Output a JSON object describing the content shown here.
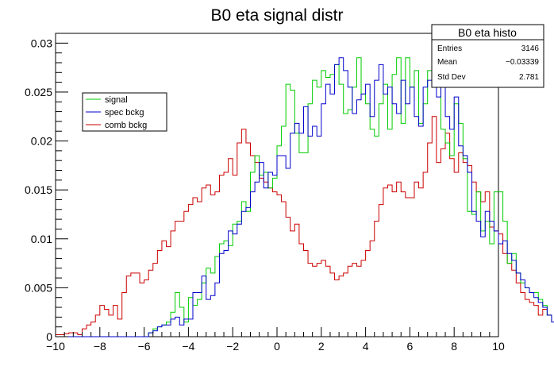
{
  "chart_data": {
    "type": "histogram",
    "title": "B0 eta signal distr",
    "xlabel": "",
    "ylabel": "",
    "xlim": [
      -10,
      10
    ],
    "ylim": [
      0,
      0.031
    ],
    "x_ticks": [
      -10,
      -8,
      -6,
      -4,
      -2,
      0,
      2,
      4,
      6,
      8,
      10
    ],
    "x_tick_labels": [
      "−10",
      "−8",
      "−6",
      "−4",
      "−2",
      "0",
      "2",
      "4",
      "6",
      "8",
      "10"
    ],
    "y_ticks": [
      0,
      0.005,
      0.01,
      0.015,
      0.02,
      0.025,
      0.03
    ],
    "y_tick_labels": [
      "0",
      "0.005",
      "0.01",
      "0.015",
      "0.02",
      "0.025",
      "0.03"
    ],
    "bins": {
      "min": -10,
      "max": 10,
      "width": 0.2
    },
    "legend_position": "left",
    "series": [
      {
        "name": "signal",
        "color": "#00cc00",
        "values": [
          0,
          0,
          0,
          0,
          0,
          0,
          0,
          0,
          0,
          0,
          0,
          0,
          0,
          0,
          0,
          0,
          0,
          0,
          0,
          0,
          0,
          0.0004,
          0.0008,
          0.001,
          0.0012,
          0.0015,
          0.0025,
          0.0045,
          0.003,
          0.0015,
          0.004,
          0.0032,
          0.0038,
          0.0055,
          0.007,
          0.0065,
          0.0082,
          0.0095,
          0.0098,
          0.0093,
          0.0115,
          0.0118,
          0.0138,
          0.0128,
          0.0168,
          0.0185,
          0.0165,
          0.0168,
          0.0152,
          0.0162,
          0.0195,
          0.0215,
          0.0258,
          0.0252,
          0.0208,
          0.0188,
          0.0188,
          0.0238,
          0.0262,
          0.0255,
          0.0272,
          0.0265,
          0.0268,
          0.0278,
          0.0258,
          0.0228,
          0.0232,
          0.0255,
          0.0285,
          0.0248,
          0.0238,
          0.0212,
          0.0205,
          0.0238,
          0.0258,
          0.0212,
          0.0268,
          0.0285,
          0.0218,
          0.0285,
          0.0255,
          0.0272,
          0.0218,
          0.0238,
          0.0272,
          0.0258,
          0.0262,
          0.0212,
          0.0198,
          0.0185,
          0.0238,
          0.0218,
          0.0182,
          0.0128,
          0.0125,
          0.0148,
          0.0108,
          0.0118,
          0.0095,
          0.0148,
          0.0148,
          0.0118,
          0.0075,
          0.0085,
          0.0065,
          0.0055,
          0.005,
          0.0045,
          0.0045,
          0.0038,
          0.0032,
          0.0022,
          0.0015,
          0.0012,
          0.0008,
          0.0005,
          0.0005,
          0.0004,
          0.0002,
          0,
          0,
          0,
          0,
          0,
          0,
          0,
          0,
          0,
          0,
          0,
          0,
          0,
          0,
          0,
          0,
          0,
          0,
          0,
          0,
          0
        ]
      },
      {
        "name": "spec bckg",
        "color": "#0000cc",
        "values": [
          0,
          0,
          0,
          0,
          0,
          0,
          0,
          0,
          0,
          0,
          0,
          0,
          0,
          0,
          0,
          0,
          0,
          0,
          0,
          0,
          0,
          0.0004,
          0.0006,
          0.001,
          0.0012,
          0.0012,
          0.0018,
          0.002,
          0.0012,
          0.0018,
          0.0018,
          0.0045,
          0.0045,
          0.0062,
          0.0038,
          0.0042,
          0.0055,
          0.0085,
          0.0088,
          0.0108,
          0.0105,
          0.0115,
          0.0128,
          0.0132,
          0.0148,
          0.0158,
          0.0178,
          0.0152,
          0.0168,
          0.0165,
          0.0185,
          0.0185,
          0.0172,
          0.0208,
          0.0218,
          0.0208,
          0.0235,
          0.0205,
          0.0215,
          0.0205,
          0.0238,
          0.0258,
          0.0248,
          0.0278,
          0.0285,
          0.0272,
          0.0255,
          0.0228,
          0.0242,
          0.0248,
          0.0258,
          0.0225,
          0.0262,
          0.0278,
          0.0248,
          0.0255,
          0.0238,
          0.0228,
          0.0262,
          0.0238,
          0.0255,
          0.0225,
          0.0215,
          0.0255,
          0.0262,
          0.0268,
          0.0245,
          0.0255,
          0.0225,
          0.0212,
          0.0245,
          0.0195,
          0.0185,
          0.0168,
          0.0128,
          0.0118,
          0.0102,
          0.0128,
          0.0118,
          0.0108,
          0.0095,
          0.0098,
          0.0085,
          0.0078,
          0.0065,
          0.0058,
          0.005,
          0.0045,
          0.004,
          0.0035,
          0.003,
          0.0022,
          0.0015,
          0.001,
          0.0008,
          0.0005,
          0.0004,
          0.0002,
          0.0002,
          0,
          0,
          0,
          0,
          0,
          0,
          0,
          0,
          0,
          0,
          0,
          0,
          0,
          0,
          0,
          0,
          0,
          0,
          0,
          0,
          0
        ]
      },
      {
        "name": "comb bckg",
        "color": "#cc0000",
        "values": [
          0.0002,
          0.0002,
          0.0003,
          0.0004,
          0.0004,
          0.0002,
          0.0008,
          0.0012,
          0.0015,
          0.0022,
          0.0032,
          0.0028,
          0.0022,
          0.0032,
          0.0018,
          0.0045,
          0.0062,
          0.0065,
          0.0065,
          0.0055,
          0.0058,
          0.0068,
          0.0075,
          0.0088,
          0.0098,
          0.0092,
          0.0108,
          0.0118,
          0.0118,
          0.0128,
          0.0135,
          0.0142,
          0.0138,
          0.0152,
          0.0155,
          0.0145,
          0.0148,
          0.0165,
          0.0168,
          0.0182,
          0.0165,
          0.0198,
          0.0212,
          0.0198,
          0.0185,
          0.0178,
          0.0162,
          0.0158,
          0.0152,
          0.0148,
          0.0145,
          0.0138,
          0.0122,
          0.0108,
          0.0115,
          0.0095,
          0.0088,
          0.0075,
          0.0072,
          0.0075,
          0.0078,
          0.0072,
          0.0065,
          0.0058,
          0.0062,
          0.0065,
          0.0072,
          0.0075,
          0.0072,
          0.0078,
          0.0088,
          0.0098,
          0.0118,
          0.0135,
          0.0152,
          0.0155,
          0.0148,
          0.0158,
          0.0148,
          0.0142,
          0.0142,
          0.0158,
          0.0152,
          0.0168,
          0.0198,
          0.0225,
          0.0178,
          0.0192,
          0.0208,
          0.0182,
          0.0168,
          0.0188,
          0.0178,
          0.0175,
          0.0158,
          0.0148,
          0.0138,
          0.0148,
          0.0112,
          0.0108,
          0.0105,
          0.0085,
          0.0075,
          0.0068,
          0.0055,
          0.0045,
          0.0038,
          0.0035,
          0.0032,
          0.0022,
          0.0028,
          0.0022,
          0.0015,
          0.0015,
          0.001,
          0.0008,
          0.0005,
          0.0004,
          0.0002,
          0.0002,
          0.0002,
          0,
          0,
          0,
          0,
          0,
          0,
          0,
          0,
          0,
          0,
          0,
          0,
          0,
          0,
          0,
          0,
          0,
          0,
          0,
          0,
          0
        ]
      }
    ]
  },
  "stats_box": {
    "title": "B0 eta histo",
    "rows": [
      {
        "label": "Entries",
        "value": "3146"
      },
      {
        "label": "Mean",
        "value": "−0.03339"
      },
      {
        "label": "Std Dev",
        "value": "2.781"
      }
    ]
  }
}
